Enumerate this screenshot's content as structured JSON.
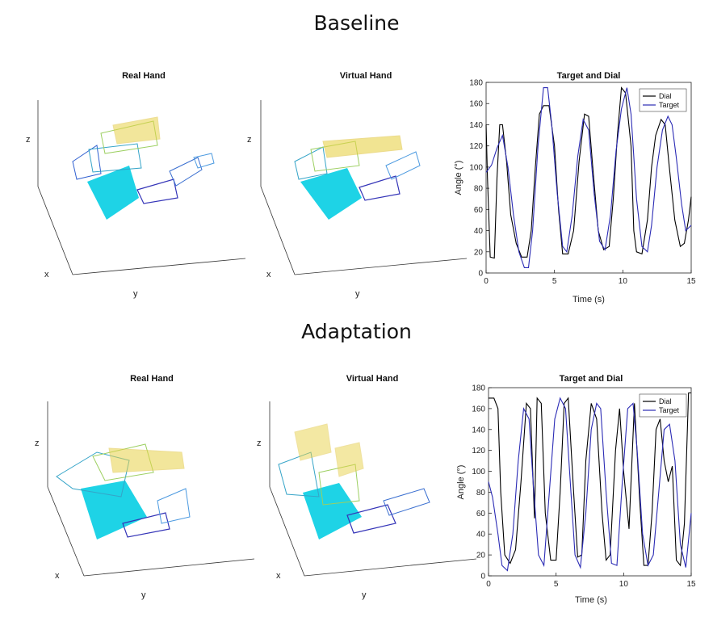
{
  "sections": [
    {
      "title": "Baseline",
      "panels": {
        "real": "Real Hand",
        "virtual": "Virtual Hand",
        "chart": "Target and Dial"
      }
    },
    {
      "title": "Adaptation",
      "panels": {
        "real": "Real Hand",
        "virtual": "Virtual Hand",
        "chart": "Target and Dial"
      }
    }
  ],
  "axes3d": {
    "x": "x",
    "y": "y",
    "z": "z"
  },
  "colors": {
    "dial": "#000000",
    "target": "#2b2bb5",
    "palm": "#1ed3e6",
    "finger_warm": "#e8d34a",
    "finger_cool": "#35a4c8",
    "thumb": "#3535b8"
  },
  "chart_data": [
    {
      "type": "line",
      "title": "Target and Dial",
      "xlabel": "Time (s)",
      "ylabel": "Angle (°)",
      "xlim": [
        0,
        15
      ],
      "ylim": [
        0,
        180
      ],
      "xticks": [
        0,
        5,
        10,
        15
      ],
      "yticks": [
        0,
        20,
        40,
        60,
        80,
        100,
        120,
        140,
        160,
        180
      ],
      "legend": {
        "position": "top-right",
        "entries": [
          "Dial",
          "Target"
        ]
      },
      "series": [
        {
          "name": "Dial",
          "color": "#000000",
          "x": [
            0,
            0.1,
            0.3,
            0.6,
            0.8,
            1.0,
            1.2,
            1.5,
            1.8,
            2.2,
            2.6,
            3.0,
            3.3,
            3.6,
            3.9,
            4.2,
            4.6,
            5.0,
            5.3,
            5.6,
            6.0,
            6.4,
            6.8,
            7.2,
            7.5,
            7.8,
            8.2,
            8.6,
            9.0,
            9.3,
            9.6,
            9.9,
            10.2,
            10.6,
            10.8,
            11.0,
            11.4,
            11.8,
            12.1,
            12.4,
            12.8,
            13.1,
            13.4,
            13.8,
            14.2,
            14.5,
            14.8,
            15.0
          ],
          "y": [
            140,
            90,
            15,
            14,
            90,
            140,
            140,
            105,
            55,
            28,
            15,
            15,
            40,
            100,
            150,
            158,
            158,
            120,
            60,
            18,
            18,
            40,
            105,
            150,
            148,
            100,
            40,
            22,
            25,
            70,
            130,
            175,
            170,
            120,
            40,
            20,
            18,
            50,
            100,
            130,
            145,
            140,
            100,
            50,
            25,
            28,
            50,
            72
          ]
        },
        {
          "name": "Target",
          "color": "#2b2bb5",
          "x": [
            0,
            0.4,
            0.8,
            1.2,
            1.6,
            2.0,
            2.4,
            2.8,
            3.1,
            3.4,
            3.8,
            4.2,
            4.5,
            4.8,
            5.2,
            5.6,
            5.9,
            6.3,
            6.7,
            7.1,
            7.5,
            7.9,
            8.3,
            8.7,
            9.1,
            9.5,
            9.9,
            10.3,
            10.6,
            11.0,
            11.4,
            11.8,
            12.1,
            12.5,
            12.9,
            13.3,
            13.6,
            13.9,
            14.3,
            14.6,
            15.0
          ],
          "y": [
            95,
            102,
            118,
            130,
            100,
            55,
            20,
            5,
            5,
            40,
            120,
            175,
            175,
            140,
            75,
            25,
            20,
            55,
            110,
            145,
            135,
            75,
            30,
            22,
            55,
            115,
            155,
            175,
            150,
            70,
            25,
            20,
            45,
            100,
            135,
            148,
            140,
            110,
            65,
            40,
            45
          ]
        }
      ]
    },
    {
      "type": "line",
      "title": "Target and Dial",
      "xlabel": "Time (s)",
      "ylabel": "Angle (°)",
      "xlim": [
        0,
        15
      ],
      "ylim": [
        0,
        180
      ],
      "xticks": [
        0,
        5,
        10,
        15
      ],
      "yticks": [
        0,
        20,
        40,
        60,
        80,
        100,
        120,
        140,
        160,
        180
      ],
      "legend": {
        "position": "top-right",
        "entries": [
          "Dial",
          "Target"
        ]
      },
      "series": [
        {
          "name": "Dial",
          "color": "#000000",
          "x": [
            0,
            0.4,
            0.7,
            0.9,
            1.2,
            1.6,
            2.0,
            2.4,
            2.8,
            3.1,
            3.4,
            3.6,
            3.9,
            4.2,
            4.6,
            5.0,
            5.3,
            5.6,
            5.9,
            6.3,
            6.6,
            6.9,
            7.2,
            7.6,
            8.0,
            8.4,
            8.7,
            9.0,
            9.4,
            9.7,
            10.0,
            10.4,
            10.8,
            11.2,
            11.5,
            11.8,
            12.1,
            12.4,
            12.7,
            13.0,
            13.3,
            13.6,
            13.9,
            14.2,
            14.5,
            14.8,
            15.0
          ],
          "y": [
            170,
            170,
            160,
            80,
            20,
            12,
            25,
            90,
            165,
            160,
            55,
            170,
            165,
            60,
            15,
            15,
            80,
            165,
            170,
            80,
            18,
            20,
            110,
            165,
            150,
            60,
            15,
            20,
            120,
            160,
            100,
            45,
            165,
            70,
            10,
            10,
            60,
            140,
            150,
            110,
            90,
            105,
            15,
            10,
            50,
            175,
            175
          ]
        },
        {
          "name": "Target",
          "color": "#2b2bb5",
          "x": [
            0,
            0.3,
            0.7,
            1.0,
            1.4,
            1.8,
            2.2,
            2.6,
            3.0,
            3.3,
            3.7,
            4.1,
            4.5,
            4.9,
            5.3,
            5.7,
            6.0,
            6.4,
            6.8,
            7.2,
            7.6,
            8.0,
            8.3,
            8.7,
            9.1,
            9.5,
            9.9,
            10.3,
            10.7,
            11.0,
            11.4,
            11.8,
            12.2,
            12.6,
            13.0,
            13.4,
            13.8,
            14.2,
            14.6,
            15.0
          ],
          "y": [
            90,
            75,
            40,
            10,
            5,
            40,
            110,
            160,
            150,
            90,
            20,
            10,
            80,
            150,
            170,
            160,
            100,
            20,
            8,
            60,
            140,
            165,
            160,
            80,
            12,
            10,
            90,
            160,
            165,
            120,
            40,
            10,
            20,
            80,
            140,
            145,
            110,
            30,
            8,
            60
          ]
        }
      ]
    }
  ]
}
